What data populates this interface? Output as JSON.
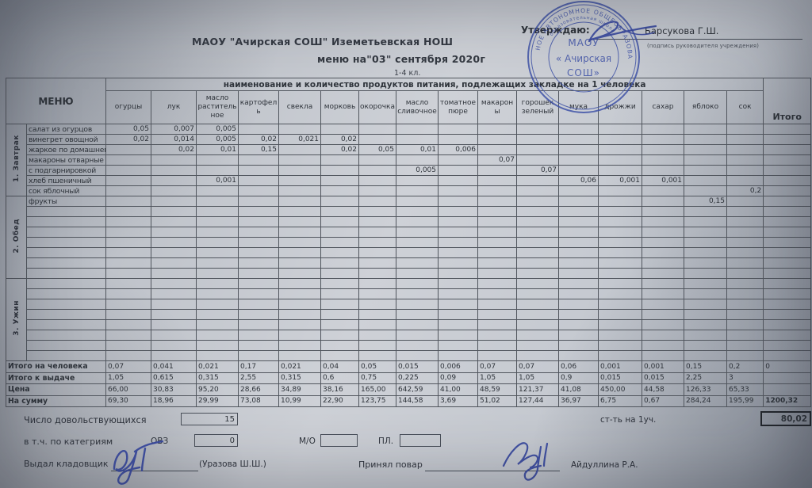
{
  "header": {
    "school": "МАОУ \"Ачирская СОШ\" Иземетьевская НОШ",
    "menu_title": "меню на\"03\" сентября 2020г",
    "classes": "1-4 кл.",
    "approve_label": "Утверждаю:",
    "approver_name": "Барсукова Г.Ш.",
    "approver_caption": "(подпись руководителя учреждения)",
    "stamp": {
      "line1": "МАОУ",
      "line2": "« Ачирская",
      "line3": "СОШ»",
      "ring_outer": "НОЕ АВТОНОМНОЕ ОБЩЕОБРАЗОВА",
      "ring_inner": "образовательная школа"
    }
  },
  "table": {
    "menu_header": "МЕНЮ",
    "group_header": "наименование и количество продуктов питания, подлежащих закладке на 1 человека",
    "total_header": "Итого",
    "columns": [
      "огурцы",
      "лук",
      "масло растительное",
      "картофель",
      "свекла",
      "морковь",
      "окорочка",
      "масло сливочное",
      "томатное пюре",
      "макароны",
      "горошек зеленый",
      "мука",
      "дрожжи",
      "сахар",
      "яблоко",
      "сок"
    ],
    "sections": [
      {
        "label": "1. Завтрак",
        "extra_empty_rows": 0,
        "rows": [
          {
            "name": "салат из огурцов",
            "values": [
              "0,05",
              "0,007",
              "0,005",
              "",
              "",
              "",
              "",
              "",
              "",
              "",
              "",
              "",
              "",
              "",
              "",
              ""
            ]
          },
          {
            "name": "винегрет овощной",
            "values": [
              "0,02",
              "0,014",
              "0,005",
              "0,02",
              "0,021",
              "0,02",
              "",
              "",
              "",
              "",
              "",
              "",
              "",
              "",
              "",
              ""
            ]
          },
          {
            "name": "жаркое по домашнему",
            "values": [
              "",
              "0,02",
              "0,01",
              "0,15",
              "",
              "0,02",
              "0,05",
              "0,01",
              "0,006",
              "",
              "",
              "",
              "",
              "",
              "",
              ""
            ]
          },
          {
            "name": "макароны отварные",
            "values": [
              "",
              "",
              "",
              "",
              "",
              "",
              "",
              "",
              "",
              "0,07",
              "",
              "",
              "",
              "",
              "",
              ""
            ]
          },
          {
            "name": "с подгарнировкой",
            "values": [
              "",
              "",
              "",
              "",
              "",
              "",
              "",
              "0,005",
              "",
              "",
              "0,07",
              "",
              "",
              "",
              "",
              ""
            ]
          },
          {
            "name": "хлеб пшеничный",
            "values": [
              "",
              "",
              "0,001",
              "",
              "",
              "",
              "",
              "",
              "",
              "",
              "",
              "0,06",
              "0,001",
              "0,001",
              "",
              ""
            ]
          },
          {
            "name": "сок яблочный",
            "values": [
              "",
              "",
              "",
              "",
              "",
              "",
              "",
              "",
              "",
              "",
              "",
              "",
              "",
              "",
              "",
              "0,2"
            ]
          }
        ]
      },
      {
        "label": "2. Обед",
        "extra_empty_rows": 7,
        "rows": [
          {
            "name": "фрукты",
            "values": [
              "",
              "",
              "",
              "",
              "",
              "",
              "",
              "",
              "",
              "",
              "",
              "",
              "",
              "",
              "0,15",
              ""
            ]
          }
        ]
      },
      {
        "label": "3. Ужин",
        "extra_empty_rows": 8,
        "rows": []
      }
    ],
    "totals": [
      {
        "label": "Итого на человека",
        "values": [
          "0,07",
          "0,041",
          "0,021",
          "0,17",
          "0,021",
          "0,04",
          "0,05",
          "0,015",
          "0,006",
          "0,07",
          "0,07",
          "0,06",
          "0,001",
          "0,001",
          "0,15",
          "0,2"
        ],
        "total": "0"
      },
      {
        "label": "Итого к выдаче",
        "values": [
          "1,05",
          "0,615",
          "0,315",
          "2,55",
          "0,315",
          "0,6",
          "0,75",
          "0,225",
          "0,09",
          "1,05",
          "1,05",
          "0,9",
          "0,015",
          "0,015",
          "2,25",
          "3"
        ],
        "total": ""
      },
      {
        "label": "Цена",
        "values": [
          "66,00",
          "30,83",
          "95,20",
          "28,66",
          "34,89",
          "38,16",
          "165,00",
          "642,59",
          "41,00",
          "48,59",
          "121,37",
          "41,08",
          "450,00",
          "44,58",
          "126,33",
          "65,33"
        ],
        "total": ""
      },
      {
        "label": "На сумму",
        "values": [
          "69,30",
          "18,96",
          "29,99",
          "73,08",
          "10,99",
          "22,90",
          "123,75",
          "144,58",
          "3,69",
          "51,02",
          "127,44",
          "36,97",
          "6,75",
          "0,67",
          "284,24",
          "195,99"
        ],
        "total": "1200,32"
      }
    ]
  },
  "footer": {
    "beneficiaries_label": "Число довольствующихся",
    "beneficiaries_value": "15",
    "cost_label": "ст-ть на 1уч.",
    "cost_value": "80,02",
    "categories_label": "в т.ч. по категриям",
    "ovz_label": "ОВЗ",
    "ovz_value": "0",
    "mo_label": "М/О",
    "pl_label": "ПЛ.",
    "storekeeper_label": "Выдал кладовщик",
    "storekeeper_name": "(Уразова Ш.Ш.)",
    "cook_label": "Принял повар",
    "cook_name": "Айдуллина Р.А."
  }
}
